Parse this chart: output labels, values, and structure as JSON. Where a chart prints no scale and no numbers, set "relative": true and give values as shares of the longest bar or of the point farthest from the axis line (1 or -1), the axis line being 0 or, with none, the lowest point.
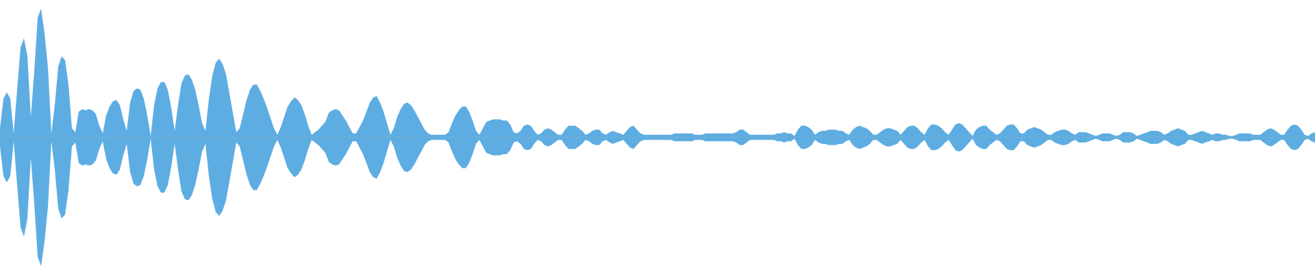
{
  "chart_data": {
    "type": "area",
    "relative": true,
    "categories": [
      null,
      null,
      null,
      null,
      null,
      null,
      null,
      null,
      null,
      null,
      null,
      null,
      null,
      null,
      null,
      null,
      null,
      null,
      null,
      null,
      null,
      null,
      null,
      null,
      null,
      null,
      null,
      null,
      null,
      null,
      null,
      null,
      null,
      null,
      null,
      null,
      null,
      null,
      null,
      null,
      null,
      null,
      null,
      null,
      null,
      null,
      null,
      null,
      null,
      null,
      null,
      null,
      null,
      null,
      null,
      null,
      null,
      null,
      null,
      null,
      null,
      null,
      null,
      null,
      null,
      null,
      null,
      null,
      null,
      null,
      null,
      null,
      null,
      null,
      null,
      null,
      null,
      null,
      null,
      null,
      null,
      null,
      null,
      null,
      null,
      null,
      null,
      null,
      null,
      null,
      null,
      null,
      null,
      null,
      null,
      null,
      null,
      null,
      null,
      null,
      null,
      null,
      null,
      null,
      null,
      null,
      null,
      null,
      null,
      null,
      null,
      null,
      null,
      null,
      null,
      null,
      null,
      null,
      null,
      null,
      null,
      null,
      null,
      null,
      null,
      null,
      null,
      null,
      null,
      null,
      null,
      null,
      null,
      null,
      null,
      null,
      null,
      null,
      null,
      null,
      null,
      null,
      null,
      null,
      null,
      null,
      null,
      null,
      null,
      null,
      null,
      null,
      null,
      null,
      null,
      null,
      null,
      null,
      null,
      null,
      null,
      null,
      null,
      null,
      null,
      null,
      null,
      null,
      null,
      null,
      null,
      null,
      null,
      null,
      null,
      null,
      null,
      null,
      null,
      null,
      null,
      null,
      null,
      null,
      null,
      null,
      null,
      null,
      null,
      null,
      null,
      null,
      null,
      null,
      null,
      null,
      null,
      null,
      null,
      null,
      null,
      null,
      null,
      null,
      null,
      null,
      null,
      null,
      null,
      null,
      null,
      null,
      null,
      null,
      null,
      null,
      null,
      null,
      null,
      null,
      null,
      null,
      null,
      null,
      null,
      null,
      null,
      null,
      null,
      null,
      null,
      null,
      null,
      null,
      null,
      null,
      null,
      null,
      null,
      null,
      null,
      null,
      null,
      null,
      null,
      null,
      null,
      null,
      null,
      null,
      null,
      null,
      null,
      null,
      null,
      null,
      null,
      null,
      null,
      null,
      null,
      null,
      null,
      null,
      null,
      null,
      null,
      null,
      null,
      null,
      null,
      null,
      null,
      null,
      null,
      null,
      null,
      null,
      null,
      null,
      null,
      null,
      null,
      null,
      null,
      null,
      null,
      null,
      null,
      null,
      null,
      null,
      null,
      null,
      null,
      null,
      null,
      null,
      null,
      null,
      null,
      null,
      null,
      null,
      null,
      null,
      null,
      null,
      null,
      null,
      null,
      null,
      null,
      null,
      null,
      null,
      null,
      null,
      null,
      null,
      null,
      null,
      null,
      null,
      null,
      null,
      null,
      null,
      null,
      null,
      null,
      null,
      null,
      null,
      null,
      null,
      null,
      null,
      null,
      null,
      null,
      null,
      null,
      null,
      null,
      null,
      null,
      null,
      null,
      null,
      null,
      null,
      null,
      null,
      null,
      null,
      null,
      null,
      null,
      null,
      null,
      null,
      null,
      null,
      null,
      null,
      null,
      null,
      null,
      null,
      null,
      null,
      null,
      null,
      null,
      null,
      null,
      null,
      null,
      null,
      null,
      null,
      null,
      null,
      null
    ],
    "series": [
      {
        "color": "#5dade2",
        "values": [
          0.07,
          0.3,
          0.35,
          0.3,
          0.03,
          0.37,
          0.7,
          0.77,
          0.63,
          0.16,
          0.51,
          0.93,
          1,
          0.81,
          0.54,
          0.03,
          0.25,
          0.55,
          0.63,
          0.6,
          0.41,
          0.07,
          0.04,
          0.2,
          0.22,
          0.21,
          0.22,
          0.21,
          0.18,
          0.09,
          0.03,
          0.17,
          0.24,
          0.28,
          0.29,
          0.25,
          0.14,
          0.05,
          0.27,
          0.36,
          0.38,
          0.37,
          0.3,
          0.17,
          0.01,
          0.25,
          0.38,
          0.43,
          0.43,
          0.37,
          0.23,
          0.05,
          0.25,
          0.42,
          0.48,
          0.49,
          0.45,
          0.37,
          0.25,
          0.11,
          0.05,
          0.3,
          0.48,
          0.58,
          0.61,
          0.57,
          0.49,
          0.34,
          0.19,
          0.04,
          0.07,
          0.18,
          0.29,
          0.37,
          0.41,
          0.41,
          0.36,
          0.3,
          0.23,
          0.15,
          0.07,
          0.02,
          0.08,
          0.16,
          0.24,
          0.28,
          0.31,
          0.29,
          0.25,
          0.18,
          0.09,
          0.02,
          0.04,
          0.06,
          0.09,
          0.12,
          0.19,
          0.21,
          0.22,
          0.21,
          0.17,
          0.13,
          0.08,
          0.03,
          0.03,
          0.08,
          0.13,
          0.2,
          0.27,
          0.31,
          0.32,
          0.27,
          0.2,
          0.11,
          0.02,
          0.07,
          0.16,
          0.22,
          0.26,
          0.27,
          0.25,
          0.21,
          0.16,
          0.11,
          0.06,
          0.03,
          0.02,
          0.02,
          0.02,
          0.02,
          0.02,
          0.04,
          0.11,
          0.17,
          0.21,
          0.24,
          0.24,
          0.2,
          0.13,
          0.05,
          0.02,
          0.07,
          0.12,
          0.13,
          0.14,
          0.14,
          0.14,
          0.13,
          0.13,
          0.1,
          0.04,
          0.03,
          0.05,
          0.09,
          0.1,
          0.09,
          0.05,
          0.02,
          0.03,
          0.06,
          0.07,
          0.06,
          0.04,
          0.02,
          0.02,
          0.06,
          0.09,
          0.09,
          0.09,
          0.07,
          0.05,
          0.02,
          0.03,
          0.05,
          0.06,
          0.06,
          0.03,
          0.02,
          0.04,
          0.05,
          0.04,
          0.03,
          0.02,
          0.05,
          0.08,
          0.09,
          0.06,
          0.03,
          0.02,
          0.02,
          0.02,
          0.02,
          0.02,
          0.02,
          0.02,
          0.02,
          0.02,
          0.03,
          0.03,
          0.03,
          0.03,
          0.03,
          0.03,
          0.02,
          0.02,
          0.02,
          0.03,
          0.03,
          0.03,
          0.03,
          0.03,
          0.03,
          0.03,
          0.03,
          0.03,
          0.04,
          0.06,
          0.06,
          0.04,
          0.02,
          0.02,
          0.02,
          0.02,
          0.02,
          0.02,
          0.02,
          0.02,
          0.03,
          0.03,
          0.04,
          0.03,
          0.03,
          0.01,
          0.06,
          0.09,
          0.09,
          0.08,
          0.06,
          0.02,
          0.04,
          0.05,
          0.05,
          0.06,
          0.06,
          0.06,
          0.05,
          0.05,
          0.03,
          0.02,
          0.06,
          0.08,
          0.09,
          0.08,
          0.07,
          0.05,
          0.02,
          0.02,
          0.04,
          0.06,
          0.07,
          0.07,
          0.06,
          0.05,
          0.02,
          0.05,
          0.08,
          0.09,
          0.09,
          0.07,
          0.04,
          0.02,
          0.07,
          0.1,
          0.1,
          0.09,
          0.07,
          0.04,
          0.02,
          0.06,
          0.1,
          0.11,
          0.1,
          0.07,
          0.04,
          0.01,
          0.06,
          0.08,
          0.09,
          0.09,
          0.06,
          0.04,
          0.02,
          0.03,
          0.06,
          0.09,
          0.1,
          0.1,
          0.07,
          0.03,
          0.03,
          0.06,
          0.07,
          0.08,
          0.07,
          0.06,
          0.04,
          0.02,
          0.02,
          0.04,
          0.05,
          0.06,
          0.06,
          0.05,
          0.03,
          0.02,
          0.04,
          0.04,
          0.04,
          0.03,
          0.02,
          0.01,
          0.02,
          0.03,
          0.03,
          0.03,
          0.02,
          0.01,
          0.02,
          0.04,
          0.04,
          0.04,
          0.03,
          0.01,
          0.02,
          0.03,
          0.04,
          0.05,
          0.05,
          0.05,
          0.04,
          0.02,
          0.03,
          0.05,
          0.06,
          0.07,
          0.06,
          0.05,
          0.02,
          0.02,
          0.03,
          0.04,
          0.05,
          0.04,
          0.03,
          0.02,
          0.03,
          0.03,
          0.02,
          0.02,
          0.01,
          0.01,
          0.02,
          0.03,
          0.03,
          0.03,
          0.03,
          0.02,
          0.02,
          0.02,
          0.04,
          0.06,
          0.07,
          0.06,
          0.04,
          0.02,
          0.02,
          0.06,
          0.09,
          0.1,
          0.09,
          0.06,
          0.02,
          0.01,
          0.03,
          0.04
        ]
      },
      {
        "color": "#5dade2",
        "values": [
          -0.07,
          -0.3,
          -0.35,
          -0.3,
          -0.03,
          -0.37,
          -0.7,
          -0.77,
          -0.63,
          -0.16,
          -0.51,
          -0.93,
          -1,
          -0.81,
          -0.54,
          -0.03,
          -0.25,
          -0.55,
          -0.63,
          -0.6,
          -0.41,
          -0.07,
          -0.04,
          -0.2,
          -0.22,
          -0.21,
          -0.22,
          -0.21,
          -0.18,
          -0.09,
          -0.03,
          -0.17,
          -0.24,
          -0.28,
          -0.29,
          -0.25,
          -0.14,
          -0.05,
          -0.27,
          -0.36,
          -0.38,
          -0.37,
          -0.3,
          -0.17,
          -0.01,
          -0.25,
          -0.38,
          -0.43,
          -0.43,
          -0.37,
          -0.23,
          -0.05,
          -0.25,
          -0.42,
          -0.48,
          -0.49,
          -0.45,
          -0.37,
          -0.25,
          -0.11,
          -0.05,
          -0.3,
          -0.48,
          -0.58,
          -0.61,
          -0.57,
          -0.49,
          -0.34,
          -0.19,
          -0.04,
          -0.07,
          -0.18,
          -0.29,
          -0.37,
          -0.41,
          -0.41,
          -0.36,
          -0.3,
          -0.23,
          -0.15,
          -0.07,
          -0.02,
          -0.08,
          -0.16,
          -0.24,
          -0.28,
          -0.31,
          -0.29,
          -0.25,
          -0.18,
          -0.09,
          -0.02,
          -0.04,
          -0.06,
          -0.09,
          -0.12,
          -0.19,
          -0.21,
          -0.22,
          -0.21,
          -0.17,
          -0.13,
          -0.08,
          -0.03,
          -0.03,
          -0.08,
          -0.13,
          -0.2,
          -0.27,
          -0.31,
          -0.32,
          -0.27,
          -0.2,
          -0.11,
          -0.02,
          -0.07,
          -0.16,
          -0.22,
          -0.26,
          -0.27,
          -0.25,
          -0.21,
          -0.16,
          -0.11,
          -0.06,
          -0.03,
          -0.02,
          -0.02,
          -0.02,
          -0.02,
          -0.02,
          -0.04,
          -0.11,
          -0.17,
          -0.21,
          -0.24,
          -0.24,
          -0.2,
          -0.13,
          -0.05,
          -0.02,
          -0.07,
          -0.12,
          -0.13,
          -0.14,
          -0.14,
          -0.14,
          -0.13,
          -0.13,
          -0.1,
          -0.04,
          -0.03,
          -0.05,
          -0.09,
          -0.1,
          -0.09,
          -0.05,
          -0.02,
          -0.03,
          -0.06,
          -0.07,
          -0.06,
          -0.04,
          -0.02,
          -0.02,
          -0.06,
          -0.09,
          -0.09,
          -0.09,
          -0.07,
          -0.05,
          -0.02,
          -0.03,
          -0.05,
          -0.06,
          -0.06,
          -0.03,
          -0.02,
          -0.04,
          -0.05,
          -0.04,
          -0.03,
          -0.02,
          -0.05,
          -0.08,
          -0.09,
          -0.06,
          -0.03,
          -0.02,
          -0.02,
          -0.02,
          -0.02,
          -0.02,
          -0.02,
          -0.02,
          -0.02,
          -0.02,
          -0.03,
          -0.03,
          -0.03,
          -0.03,
          -0.03,
          -0.03,
          -0.02,
          -0.02,
          -0.02,
          -0.03,
          -0.03,
          -0.03,
          -0.03,
          -0.03,
          -0.03,
          -0.03,
          -0.03,
          -0.03,
          -0.04,
          -0.06,
          -0.06,
          -0.04,
          -0.02,
          -0.02,
          -0.02,
          -0.02,
          -0.02,
          -0.02,
          -0.02,
          -0.02,
          -0.03,
          -0.03,
          -0.04,
          -0.03,
          -0.03,
          -0.01,
          -0.06,
          -0.09,
          -0.09,
          -0.08,
          -0.06,
          -0.02,
          -0.04,
          -0.05,
          -0.05,
          -0.06,
          -0.06,
          -0.06,
          -0.05,
          -0.05,
          -0.03,
          -0.02,
          -0.06,
          -0.08,
          -0.09,
          -0.08,
          -0.07,
          -0.05,
          -0.02,
          -0.02,
          -0.04,
          -0.06,
          -0.07,
          -0.07,
          -0.06,
          -0.05,
          -0.02,
          -0.05,
          -0.08,
          -0.09,
          -0.09,
          -0.07,
          -0.04,
          -0.02,
          -0.07,
          -0.1,
          -0.1,
          -0.09,
          -0.07,
          -0.04,
          -0.02,
          -0.06,
          -0.1,
          -0.11,
          -0.1,
          -0.07,
          -0.04,
          -0.01,
          -0.06,
          -0.08,
          -0.09,
          -0.09,
          -0.06,
          -0.04,
          -0.02,
          -0.03,
          -0.06,
          -0.09,
          -0.1,
          -0.1,
          -0.07,
          -0.03,
          -0.03,
          -0.06,
          -0.07,
          -0.08,
          -0.07,
          -0.06,
          -0.04,
          -0.02,
          -0.02,
          -0.04,
          -0.05,
          -0.06,
          -0.06,
          -0.05,
          -0.03,
          -0.02,
          -0.04,
          -0.04,
          -0.04,
          -0.03,
          -0.02,
          -0.01,
          -0.02,
          -0.03,
          -0.03,
          -0.03,
          -0.02,
          -0.01,
          -0.02,
          -0.04,
          -0.04,
          -0.04,
          -0.03,
          -0.01,
          -0.02,
          -0.03,
          -0.04,
          -0.05,
          -0.05,
          -0.05,
          -0.04,
          -0.02,
          -0.03,
          -0.05,
          -0.06,
          -0.07,
          -0.06,
          -0.05,
          -0.02,
          -0.02,
          -0.03,
          -0.04,
          -0.05,
          -0.04,
          -0.03,
          -0.02,
          -0.03,
          -0.03,
          -0.02,
          -0.02,
          -0.01,
          -0.01,
          -0.02,
          -0.03,
          -0.03,
          -0.03,
          -0.03,
          -0.02,
          -0.02,
          -0.02,
          -0.04,
          -0.06,
          -0.07,
          -0.06,
          -0.04,
          -0.02,
          -0.02,
          -0.06,
          -0.09,
          -0.1,
          -0.09,
          -0.06,
          -0.02,
          -0.01,
          -0.03,
          -0.04
        ]
      }
    ]
  }
}
